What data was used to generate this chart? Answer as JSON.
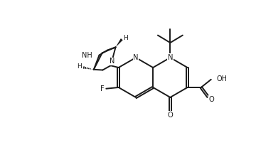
{
  "bg": "#ffffff",
  "lc": "#1a1a1a",
  "lw": 1.4,
  "figsize": [
    3.6,
    2.11
  ],
  "dpi": 100,
  "xlim": [
    -0.5,
    9.5
  ],
  "ylim": [
    -0.3,
    5.7
  ]
}
